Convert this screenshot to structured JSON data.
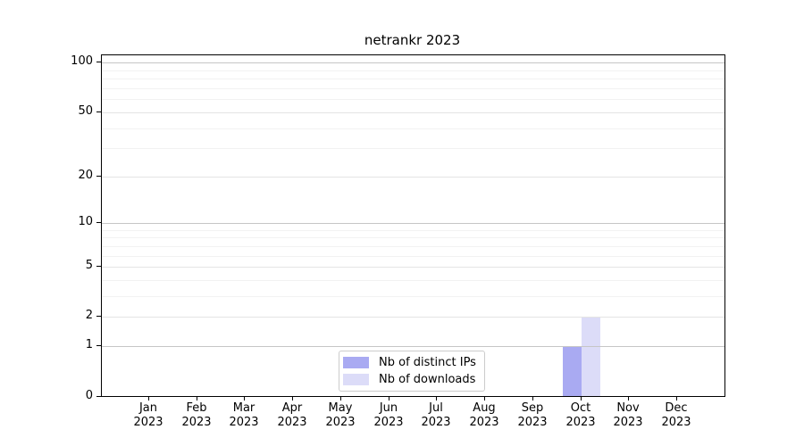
{
  "chart_data": {
    "type": "bar",
    "title": "netrankr 2023",
    "x_categories": [
      "Jan",
      "Feb",
      "Mar",
      "Apr",
      "May",
      "Jun",
      "Jul",
      "Aug",
      "Sep",
      "Oct",
      "Nov",
      "Dec"
    ],
    "x_year": "2023",
    "series": [
      {
        "name": "Nb of distinct IPs",
        "color": "#a9aaf2",
        "values": [
          0,
          0,
          0,
          0,
          0,
          0,
          0,
          0,
          0,
          1,
          0,
          0
        ]
      },
      {
        "name": "Nb of downloads",
        "color": "#dcdcf8",
        "values": [
          0,
          0,
          0,
          0,
          0,
          0,
          0,
          0,
          0,
          2,
          0,
          0
        ]
      }
    ],
    "yticks": [
      0,
      1,
      2,
      5,
      10,
      20,
      50,
      100
    ],
    "minor_yticks": [
      3,
      4,
      6,
      7,
      8,
      9,
      30,
      40,
      60,
      70,
      80,
      90
    ],
    "y_scale": "log1p",
    "ylim": [
      0,
      110
    ],
    "grid": true,
    "legend_position": "lower-center",
    "colors": {
      "grid_major_decade": "#c6c6c6",
      "grid_major": "#e4e4e4",
      "grid_minor": "#f2f2f2",
      "axis": "#000000",
      "background": "#ffffff"
    }
  }
}
